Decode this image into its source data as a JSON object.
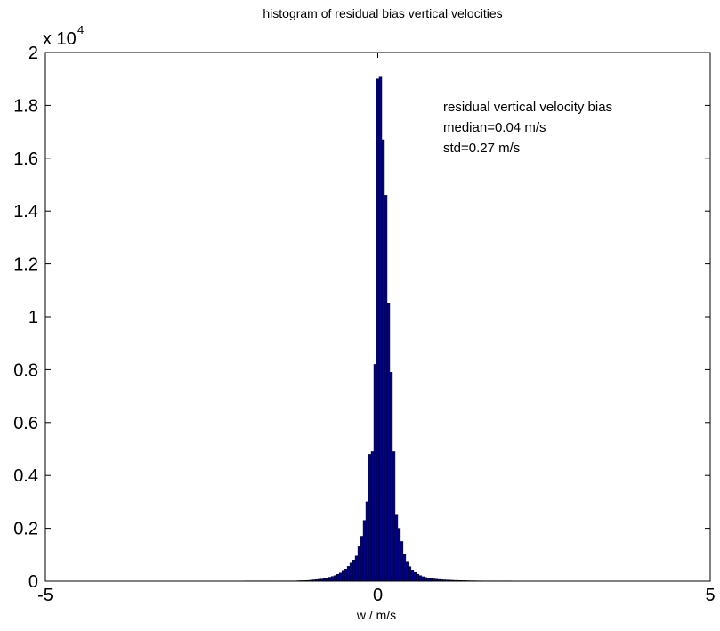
{
  "chart_data": {
    "type": "bar",
    "title": "histogram of residual bias vertical velocities",
    "xlabel": "w / m/s",
    "ylabel": "",
    "xlim": [
      -5,
      5
    ],
    "ylim": [
      0,
      20000
    ],
    "y_multiplier_base": "x 10",
    "y_multiplier_exponent": "4",
    "x_ticks": [
      -5,
      0,
      5
    ],
    "x_tick_labels": [
      "-5",
      "0",
      "5"
    ],
    "y_ticks": [
      0,
      2000,
      4000,
      6000,
      8000,
      10000,
      12000,
      14000,
      16000,
      18000,
      20000
    ],
    "y_tick_labels": [
      "0",
      "0.2",
      "0.4",
      "0.6",
      "0.8",
      "1",
      "1.2",
      "1.4",
      "1.6",
      "1.8",
      "2"
    ],
    "grid": false,
    "bar_color": "#00008f",
    "bar_edge_color": "#000000",
    "bin_width": 0.04,
    "annotations": [
      "residual vertical velocity bias",
      "median=0.04 m/s",
      "std=0.27 m/s"
    ],
    "bins_x": [
      -2.0,
      -1.96,
      -1.92,
      -1.88,
      -1.84,
      -1.8,
      -1.76,
      -1.72,
      -1.68,
      -1.64,
      -1.6,
      -1.56,
      -1.52,
      -1.48,
      -1.44,
      -1.4,
      -1.36,
      -1.32,
      -1.28,
      -1.24,
      -1.2,
      -1.16,
      -1.12,
      -1.08,
      -1.04,
      -1.0,
      -0.96,
      -0.92,
      -0.88,
      -0.84,
      -0.8,
      -0.76,
      -0.72,
      -0.68,
      -0.64,
      -0.6,
      -0.56,
      -0.52,
      -0.48,
      -0.44,
      -0.4,
      -0.36,
      -0.32,
      -0.28,
      -0.24,
      -0.2,
      -0.16,
      -0.12,
      -0.08,
      -0.04,
      0.0,
      0.04,
      0.08,
      0.12,
      0.16,
      0.2,
      0.24,
      0.28,
      0.32,
      0.36,
      0.4,
      0.44,
      0.48,
      0.52,
      0.56,
      0.6,
      0.64,
      0.68,
      0.72,
      0.76,
      0.8,
      0.84,
      0.88,
      0.92,
      0.96,
      1.0,
      1.04,
      1.08,
      1.12,
      1.16,
      1.2,
      1.24,
      1.28,
      1.32,
      1.36,
      1.4,
      1.44,
      1.48,
      1.52,
      1.56,
      1.6,
      1.64,
      1.68,
      1.72,
      1.76,
      1.8,
      1.84,
      1.88,
      1.92,
      1.96,
      2.0
    ],
    "values": [
      10,
      10,
      10,
      10,
      10,
      10,
      10,
      10,
      10,
      10,
      10,
      10,
      10,
      10,
      10,
      10,
      10,
      10,
      10,
      10,
      15,
      20,
      20,
      25,
      30,
      40,
      50,
      60,
      70,
      80,
      100,
      120,
      150,
      180,
      210,
      260,
      310,
      380,
      460,
      560,
      680,
      800,
      950,
      1300,
      1700,
      2300,
      3000,
      4800,
      4900,
      8200,
      19000,
      19100,
      16700,
      14600,
      10500,
      7900,
      4900,
      2500,
      2000,
      1500,
      1000,
      750,
      550,
      420,
      330,
      260,
      210,
      170,
      140,
      120,
      100,
      85,
      75,
      65,
      55,
      50,
      45,
      40,
      35,
      30,
      28,
      25,
      22,
      20,
      18,
      15,
      14,
      13,
      12,
      11,
      10,
      10,
      10,
      10,
      10,
      10,
      10,
      10,
      10,
      10,
      10
    ]
  }
}
